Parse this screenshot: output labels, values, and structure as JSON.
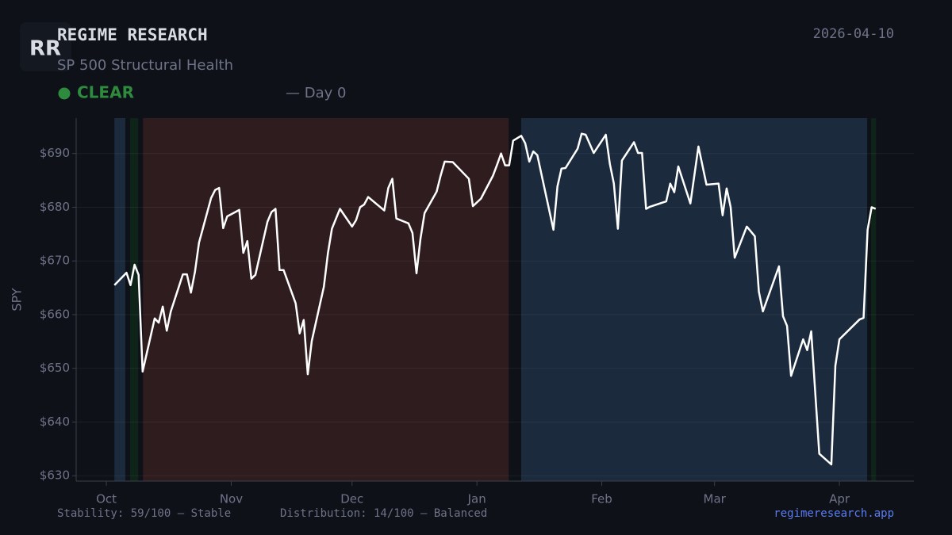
{
  "header": {
    "logo": "RR",
    "title": "REGIME RESEARCH",
    "subtitle": "SP 500 Structural Health",
    "status": "CLEAR",
    "day": "— Day 0",
    "date": "2026-04-10"
  },
  "footer": {
    "stability": "Stability: 59/100 — Stable",
    "distribution": "Distribution: 14/100 — Balanced",
    "site": "regimeresearch.app"
  },
  "chart_data": {
    "type": "line",
    "y_label": "SPY",
    "xlim": [
      -7.5,
      200.5
    ],
    "xticks": [
      {
        "value": 0,
        "label": "Oct"
      },
      {
        "value": 31,
        "label": "Nov"
      },
      {
        "value": 61,
        "label": "Dec"
      },
      {
        "value": 92,
        "label": "Jan"
      },
      {
        "value": 123,
        "label": "Feb"
      },
      {
        "value": 151,
        "label": "Mar"
      },
      {
        "value": 182,
        "label": "Apr"
      }
    ],
    "ylim": [
      629,
      696.6
    ],
    "yticks": [
      {
        "value": 630,
        "label": "$630"
      },
      {
        "value": 640,
        "label": "$640"
      },
      {
        "value": 650,
        "label": "$650"
      },
      {
        "value": 660,
        "label": "$660"
      },
      {
        "value": 670,
        "label": "$670"
      },
      {
        "value": 680,
        "label": "$680"
      },
      {
        "value": 690,
        "label": "$690"
      }
    ],
    "grid": true,
    "regimes": [
      {
        "start": 2.0,
        "end": 4.7,
        "color": "#1b2a3d"
      },
      {
        "start": 5.9,
        "end": 7.9,
        "color": "#0f2418"
      },
      {
        "start": 9.1,
        "end": 99.9,
        "color": "#2f1c1f"
      },
      {
        "start": 103.0,
        "end": 188.9,
        "color": "#1b2a3d"
      },
      {
        "start": 189.9,
        "end": 191.1,
        "color": "#0f2418"
      }
    ],
    "x": [
      2,
      5,
      6,
      7,
      8,
      9,
      12,
      13,
      14,
      15,
      16,
      19,
      20,
      21,
      22,
      23,
      26,
      27,
      28,
      29,
      30,
      33,
      34,
      35,
      36,
      37,
      40,
      41,
      42,
      43,
      44,
      47,
      48,
      49,
      50,
      51,
      54,
      55,
      56,
      58,
      61,
      62,
      63,
      64,
      65,
      69,
      70,
      71,
      72,
      75,
      76,
      77,
      78,
      79,
      82,
      83,
      84,
      86,
      90,
      91,
      93,
      96,
      97,
      98,
      99,
      100,
      101,
      103,
      104,
      105,
      106,
      107,
      111,
      112,
      113,
      114,
      117,
      118,
      119,
      121,
      124,
      125,
      126,
      127,
      128,
      131,
      132,
      133,
      134,
      135,
      139,
      140,
      141,
      142,
      145,
      147,
      149,
      152,
      153,
      154,
      155,
      156,
      159,
      161,
      162,
      163,
      167,
      168,
      169,
      170,
      173,
      174,
      175,
      177,
      180,
      181,
      182,
      187,
      188,
      189,
      190,
      191
    ],
    "series": [
      {
        "name": "SPY",
        "color": "#ffffff",
        "values": [
          665.5,
          667.8,
          665.5,
          669.3,
          667.4,
          649.4,
          659.3,
          658.5,
          661.5,
          657.0,
          660.6,
          667.5,
          667.5,
          664.1,
          668.0,
          673.4,
          681.7,
          683.2,
          683.6,
          676.1,
          678.3,
          679.5,
          671.5,
          673.7,
          666.7,
          667.4,
          677.3,
          679.1,
          679.7,
          668.3,
          668.3,
          662.1,
          656.5,
          659.0,
          648.9,
          655.1,
          665.2,
          671.4,
          676.0,
          679.7,
          676.4,
          677.6,
          680.0,
          680.5,
          681.9,
          679.4,
          683.6,
          685.3,
          677.9,
          677.0,
          675.2,
          667.7,
          674.2,
          678.9,
          682.9,
          685.9,
          688.5,
          688.4,
          685.3,
          680.2,
          681.6,
          685.9,
          687.9,
          690.0,
          687.8,
          687.8,
          692.4,
          693.3,
          691.9,
          688.5,
          690.4,
          689.7,
          675.8,
          683.9,
          687.2,
          687.3,
          690.9,
          693.7,
          693.5,
          690.1,
          693.5,
          688.1,
          684.4,
          676.0,
          688.7,
          692.1,
          690.1,
          690.1,
          679.7,
          680.1,
          681.1,
          684.4,
          682.8,
          687.6,
          680.7,
          691.3,
          684.2,
          684.4,
          678.5,
          683.5,
          680.0,
          670.6,
          676.4,
          674.6,
          664.3,
          660.6,
          669.0,
          659.7,
          657.9,
          648.6,
          655.4,
          653.4,
          656.9,
          634.1,
          632.1,
          650.5,
          655.4,
          659.1,
          659.4,
          675.8,
          680.0,
          679.7
        ]
      }
    ]
  }
}
